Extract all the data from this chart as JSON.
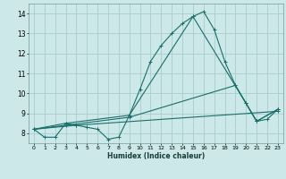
{
  "xlabel": "Humidex (Indice chaleur)",
  "ylabel": "",
  "xlim": [
    -0.5,
    23.5
  ],
  "ylim": [
    7.5,
    14.5
  ],
  "xticks": [
    0,
    1,
    2,
    3,
    4,
    5,
    6,
    7,
    8,
    9,
    10,
    11,
    12,
    13,
    14,
    15,
    16,
    17,
    18,
    19,
    20,
    21,
    22,
    23
  ],
  "yticks": [
    8,
    9,
    10,
    11,
    12,
    13,
    14
  ],
  "background_color": "#cce8e8",
  "line_color": "#1a6e6a",
  "grid_color": "#aacccc",
  "lines": [
    {
      "x": [
        0,
        1,
        2,
        3,
        4,
        5,
        6,
        7,
        8,
        9,
        10,
        11,
        12,
        13,
        14,
        15,
        16,
        17,
        18,
        19,
        20,
        21,
        22,
        23
      ],
      "y": [
        8.2,
        7.8,
        7.8,
        8.5,
        8.4,
        8.3,
        8.2,
        7.7,
        7.8,
        8.9,
        10.2,
        11.6,
        12.4,
        13.0,
        13.5,
        13.85,
        14.1,
        13.2,
        11.6,
        10.4,
        9.5,
        8.6,
        8.7,
        9.2
      ]
    },
    {
      "x": [
        0,
        3,
        9,
        15,
        20,
        21,
        23
      ],
      "y": [
        8.2,
        8.5,
        8.9,
        13.85,
        9.5,
        8.6,
        9.2
      ]
    },
    {
      "x": [
        0,
        3,
        9,
        19,
        21,
        23
      ],
      "y": [
        8.2,
        8.4,
        8.8,
        10.4,
        8.6,
        9.2
      ]
    },
    {
      "x": [
        0,
        4,
        23
      ],
      "y": [
        8.2,
        8.4,
        9.1
      ]
    }
  ]
}
